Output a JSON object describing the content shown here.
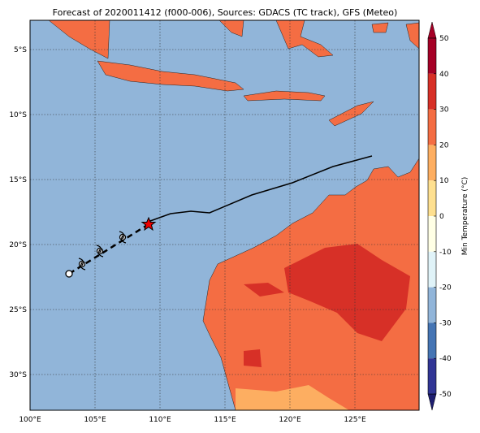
{
  "title": "Forecast of 2020011412 (f000-006), Sources: GDACS (TC track), GFS (Meteo)",
  "map": {
    "lon_labels": [
      "100°E",
      "105°E",
      "110°E",
      "115°E",
      "120°E",
      "125°E"
    ],
    "lat_labels": [
      "5°S",
      "10°S",
      "15°S",
      "20°S",
      "25°S",
      "30°S"
    ]
  },
  "colorbar": {
    "label": "Min Temperature (°C)",
    "ticks": [
      50,
      40,
      30,
      20,
      10,
      0,
      -10,
      -20,
      -30,
      -40,
      -50
    ]
  }
}
